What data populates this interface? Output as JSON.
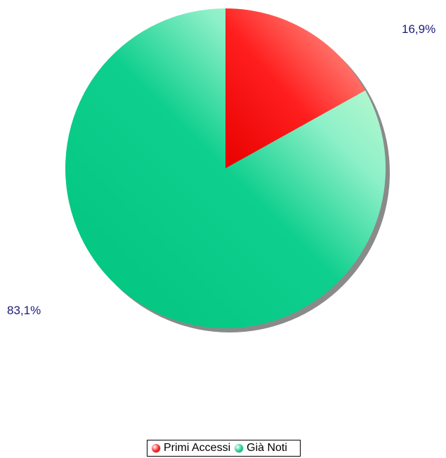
{
  "chart_data": {
    "type": "pie",
    "slices": [
      {
        "name": "Primi Accessi",
        "value": 16.9,
        "label": "16,9%",
        "color": "#f31414"
      },
      {
        "name": "Già Noti",
        "value": 83.1,
        "label": "83,1%",
        "color": "#10c98a"
      }
    ],
    "legend_position": "bottom-center"
  }
}
